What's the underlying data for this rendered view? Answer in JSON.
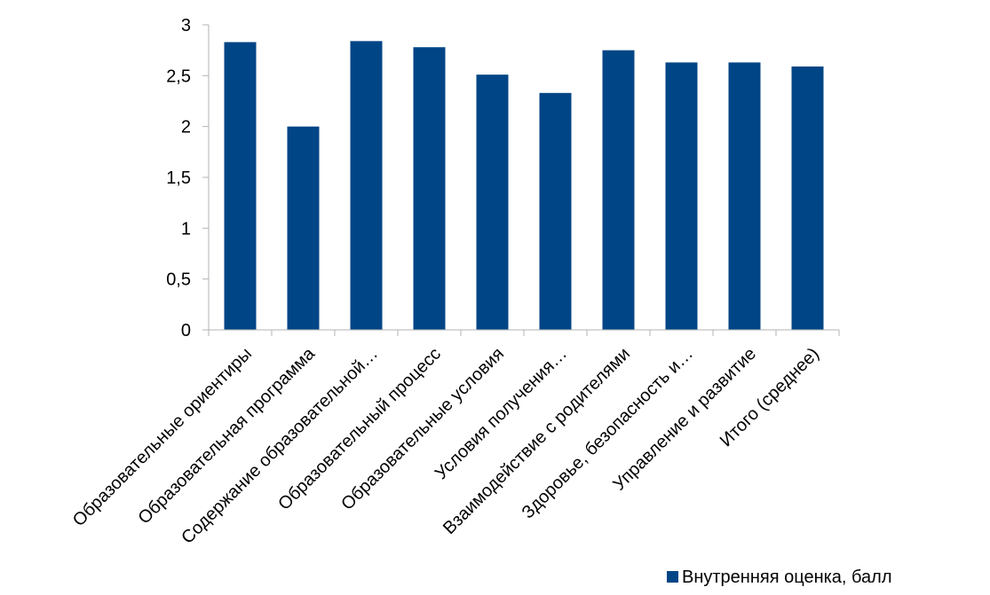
{
  "chart_data": {
    "type": "bar",
    "categories": [
      "Образовательные ориентиры",
      "Образовательная программа",
      "Содержание образовательной…",
      "Образовательный процесс",
      "Образовательные условия",
      "Условия получения…",
      "Взаимодействие с родителями",
      "Здоровье, безопасность и…",
      "Управление и развитие",
      "Итого (среднее)"
    ],
    "series": [
      {
        "name": "Внутренняя оценка, балл",
        "color": "#004586",
        "values": [
          2.83,
          2.0,
          2.84,
          2.78,
          2.51,
          2.33,
          2.75,
          2.63,
          2.63,
          2.59
        ]
      }
    ],
    "ylim": [
      0,
      3
    ],
    "yticks": [
      0,
      0.5,
      1,
      1.5,
      2,
      2.5,
      3
    ],
    "ytick_labels": [
      "0",
      "0,5",
      "1",
      "1,5",
      "2",
      "2,5",
      "3"
    ],
    "grid": false,
    "legend_position": "bottom-right",
    "title": "",
    "xlabel": "",
    "ylabel": ""
  }
}
